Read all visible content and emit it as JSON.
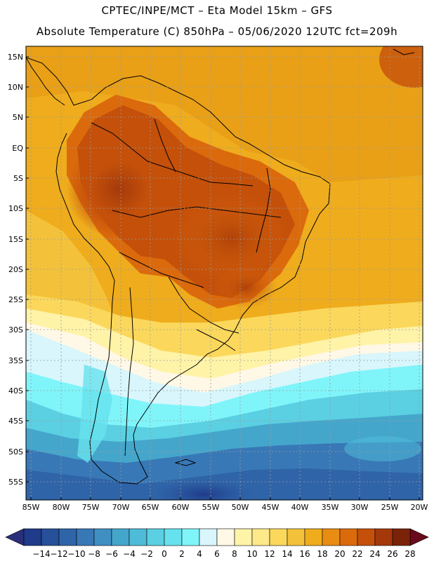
{
  "title_line1": "CPTEC/INPE/MCT –   Eta Model 15km – GFS",
  "title_line2": "Absolute Temperature (C) 850hPa – 05/06/2020 12UTC fct=209h",
  "lat_labels": [
    "15N",
    "10N",
    "5N",
    "EQ",
    "5S",
    "10S",
    "15S",
    "20S",
    "25S",
    "30S",
    "35S",
    "40S",
    "45S",
    "50S",
    "55S"
  ],
  "lon_labels": [
    "85W",
    "80W",
    "75W",
    "70W",
    "65W",
    "60W",
    "55W",
    "50W",
    "45W",
    "40W",
    "35W",
    "30W",
    "25W",
    "20W"
  ],
  "colorbar": {
    "tick_labels": [
      "-14",
      "-12",
      "-10",
      "-8",
      "-6",
      "-4",
      "-2",
      "0",
      "2",
      "4",
      "6",
      "8",
      "10",
      "12",
      "14",
      "16",
      "18",
      "20",
      "22",
      "24",
      "26",
      "28"
    ],
    "colors": [
      "#1f3b8a",
      "#27509a",
      "#2f64a8",
      "#3878b6",
      "#3f8fc2",
      "#45a6cc",
      "#4ebcd8",
      "#5ad0e2",
      "#66e2ee",
      "#7ff5fa",
      "#d8f6fb",
      "#fff8e6",
      "#fff3a8",
      "#fde98a",
      "#fbd85c",
      "#f4c23a",
      "#efac1c",
      "#e98c12",
      "#db6a0c",
      "#c4500a",
      "#a5380a",
      "#7a2308"
    ],
    "low_arrow_color": "#2a2f7a",
    "high_arrow_color": "#6b0a1a"
  }
}
